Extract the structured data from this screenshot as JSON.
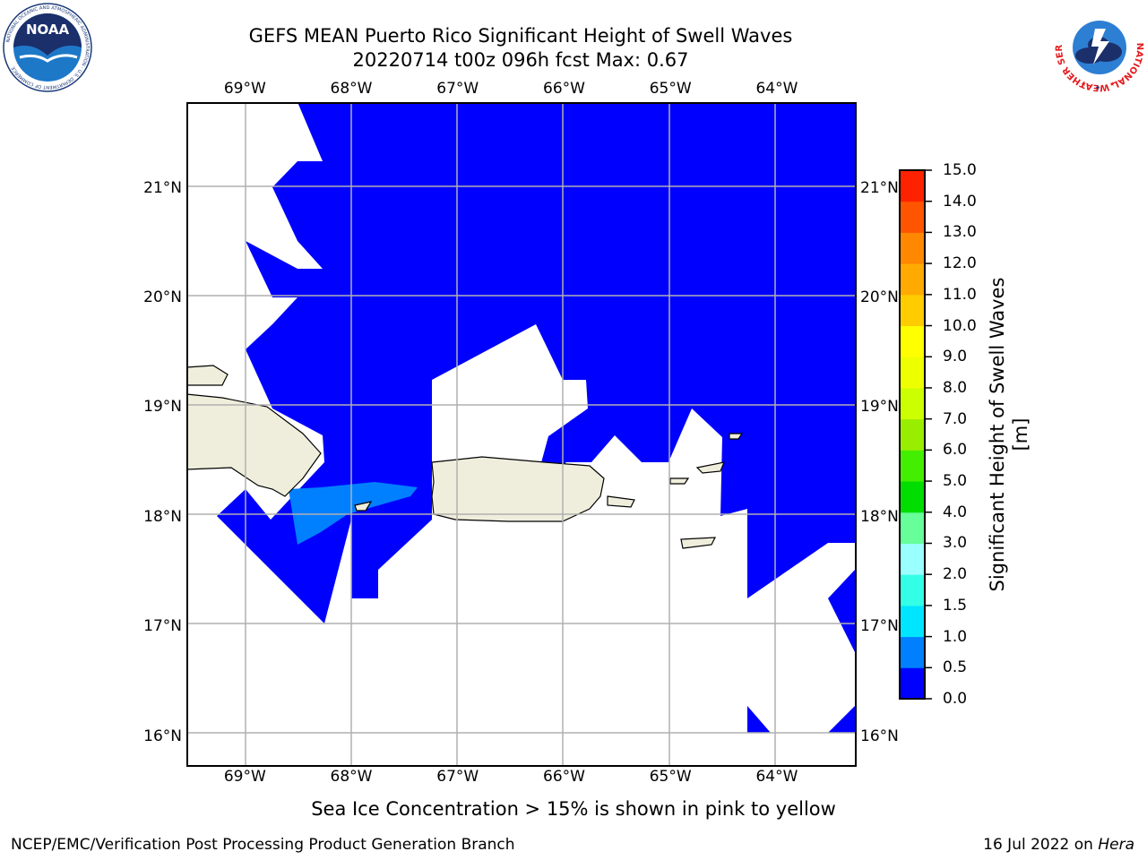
{
  "header": {
    "title_line1": "GEFS MEAN Puerto Rico Significant Height of Swell Waves",
    "title_line2": "20220714 t00z 096h fcst   Max: 0.67"
  },
  "logos": {
    "noaa_text": "NOAA",
    "noaa_ring_text": "NATIONAL OCEANIC AND ATMOSPHERIC ADMINISTRATION · U.S. DEPARTMENT OF COMMERCE",
    "nws_ring_text": "NATIONAL WEATHER SERVICE"
  },
  "map": {
    "lon_labels": [
      "69°W",
      "68°W",
      "67°W",
      "66°W",
      "65°W",
      "64°W"
    ],
    "lat_labels": [
      "16°N",
      "17°N",
      "18°N",
      "19°N",
      "20°N",
      "21°N"
    ],
    "extent": {
      "lon_min": -69.55,
      "lon_max": -63.25,
      "lat_min": 15.72,
      "lat_max": 21.78
    },
    "colors": {
      "swell_0_0p5": "#0000ff",
      "swell_0p5_1": "#0080ff",
      "land": "#efeedc",
      "masked": "#ffffff",
      "grid": "#b0b0b0"
    }
  },
  "colorbar": {
    "label": "Significant Height of Swell Waves [m]",
    "ticks": [
      "0.0",
      "0.5",
      "1.0",
      "1.5",
      "2.0",
      "3.0",
      "4.0",
      "5.0",
      "6.0",
      "7.0",
      "8.0",
      "9.0",
      "10.0",
      "11.0",
      "12.0",
      "13.0",
      "14.0",
      "15.0"
    ],
    "colors": [
      "#0000ff",
      "#0080ff",
      "#00e5ff",
      "#33ffe6",
      "#99ffff",
      "#66ff99",
      "#00dd00",
      "#44ee00",
      "#99ee00",
      "#ccff00",
      "#eeff00",
      "#ffff00",
      "#ffcc00",
      "#ffaa00",
      "#ff8800",
      "#ff5500",
      "#ff2200"
    ]
  },
  "footer": {
    "note": "Sea Ice Concentration > 15% is shown in pink to yellow",
    "branch": "NCEP/EMC/Verification Post Processing Product Generation Branch",
    "date_prefix": "16 Jul 2022 on ",
    "host": "Hera"
  }
}
